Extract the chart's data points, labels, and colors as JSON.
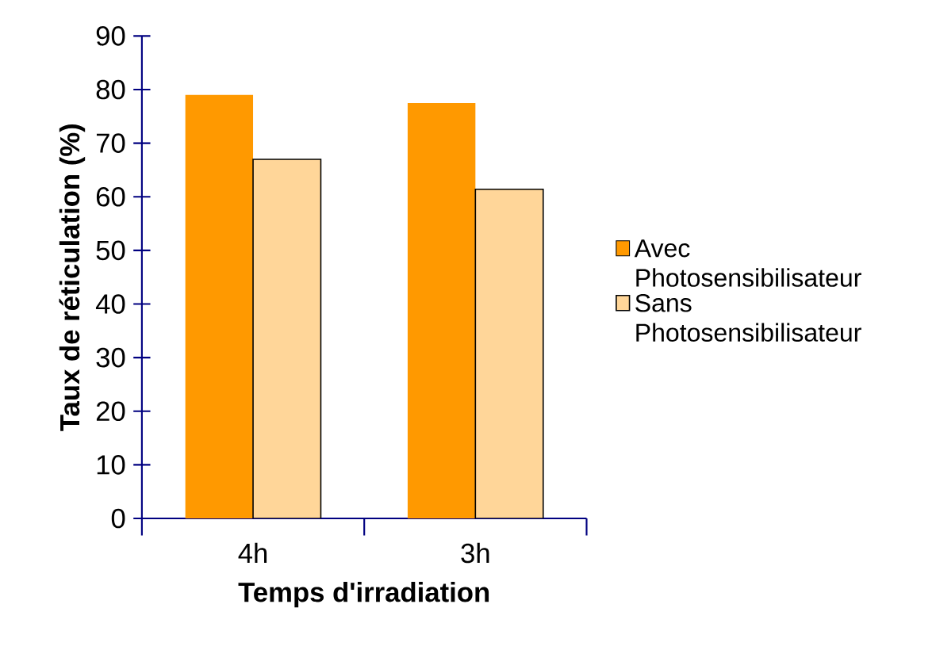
{
  "chart_data": {
    "type": "bar",
    "xlabel": "Temps d'irradiation",
    "ylabel": "Taux de réticulation (%)",
    "categories": [
      "4h",
      "3h"
    ],
    "series": [
      {
        "name": "Avec Photosensibilisateur",
        "color": "#ff9900",
        "values": [
          79,
          77.5
        ]
      },
      {
        "name": "Sans Photosensibilisateur",
        "color": "#ffd699",
        "values": [
          67,
          61.4
        ]
      }
    ],
    "ylim": [
      0,
      90
    ],
    "yticks": [
      0,
      10,
      20,
      30,
      40,
      50,
      60,
      70,
      80,
      90
    ],
    "grid": false,
    "legend": "right"
  }
}
